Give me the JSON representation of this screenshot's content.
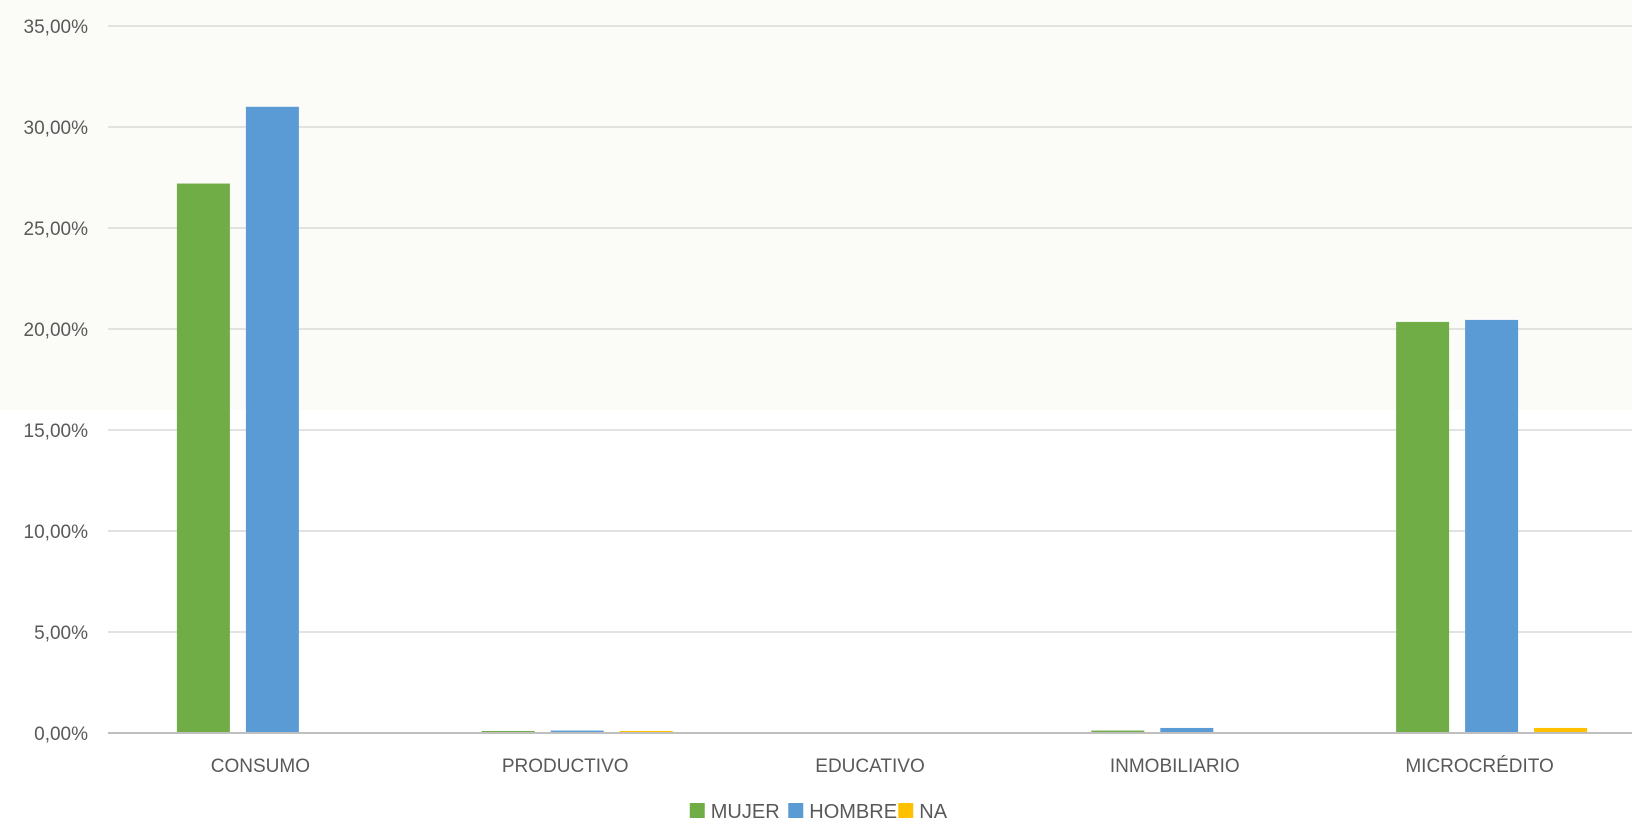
{
  "chart_data": {
    "type": "bar",
    "title": "",
    "xlabel": "",
    "ylabel": "",
    "categories": [
      "CONSUMO",
      "PRODUCTIVO",
      "EDUCATIVO",
      "INMOBILIARIO",
      "MICROCRÉDITO"
    ],
    "series": [
      {
        "name": "MUJER",
        "color": "#70AD47",
        "values": [
          27.2,
          0.05,
          0.0,
          0.12,
          20.35
        ]
      },
      {
        "name": "HOMBRE",
        "color": "#5B9BD5",
        "values": [
          31.0,
          0.12,
          0.0,
          0.25,
          20.45
        ]
      },
      {
        "name": "NA",
        "color": "#FFC000",
        "values": [
          0.0,
          0.06,
          0.0,
          0.0,
          0.25
        ]
      }
    ],
    "ylim": [
      0,
      35
    ],
    "yticks": [
      0,
      5,
      10,
      15,
      20,
      25,
      30,
      35
    ],
    "ytick_labels": [
      "0,00%",
      "5,00%",
      "10,00%",
      "15,00%",
      "20,00%",
      "25,00%",
      "30,00%",
      "35,00%"
    ],
    "grid": true,
    "legend_position": "bottom-center",
    "background_tint": "#FBFBF8",
    "gridline_color": "#D9D9D9",
    "axis_color": "#BFBFBF"
  }
}
